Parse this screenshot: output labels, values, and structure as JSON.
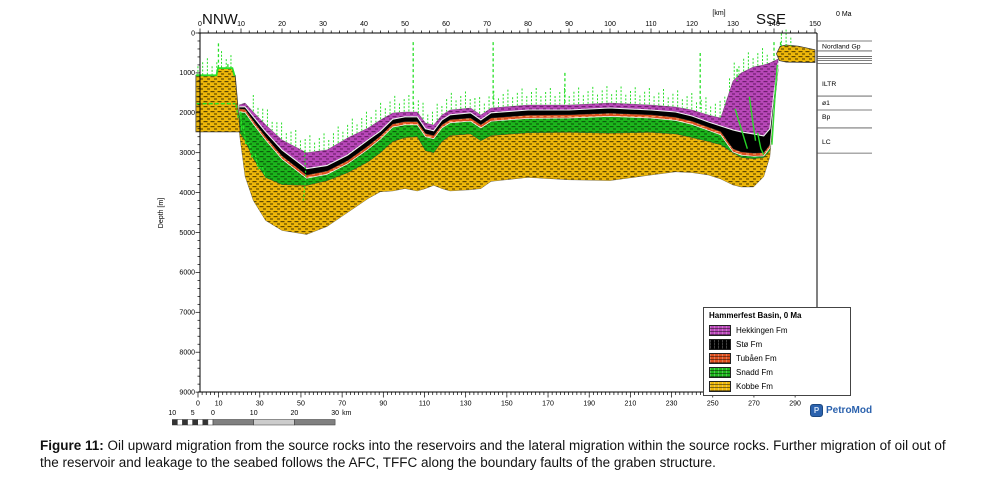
{
  "header": {
    "orientation_left": "NNW",
    "orientation_right": "SSE",
    "distance_unit_label": "[km]",
    "age_label": "0 Ma"
  },
  "depth_axis": {
    "label": "Depth [m]",
    "ticks": [
      0,
      1000,
      2000,
      3000,
      4000,
      5000,
      6000,
      7000,
      8000,
      9000
    ]
  },
  "top_axis": {
    "ticks": [
      0,
      10,
      20,
      30,
      40,
      50,
      60,
      70,
      80,
      90,
      100,
      110,
      120,
      130,
      140,
      150
    ]
  },
  "bottom_axis": {
    "ticks": [
      0,
      10,
      30,
      50,
      70,
      90,
      110,
      130,
      150,
      170,
      190,
      210,
      230,
      250,
      270,
      290
    ]
  },
  "panel": {
    "labels": [
      {
        "text": "Nordland Gp",
        "depth_m": 330
      },
      {
        "text": "ILTR",
        "depth_m": 1260
      },
      {
        "text": "ø1",
        "depth_m": 1740
      },
      {
        "text": "Bp",
        "depth_m": 2090
      },
      {
        "text": "LC",
        "depth_m": 2720
      }
    ],
    "line_depths_m": [
      200,
      450,
      590,
      640,
      690,
      765,
      1580,
      1930,
      2380,
      3010
    ]
  },
  "legend": {
    "title": "Hammerfest Basin, 0 Ma",
    "items": [
      {
        "label": "Hekkingen Fm",
        "color": "#B847B8",
        "pattern_dark": "#6E1F6E"
      },
      {
        "label": "Stø Fm",
        "color": "#000000",
        "pattern_dark": "#000000"
      },
      {
        "label": "Tubåen Fm",
        "color": "#DD4F1E",
        "pattern_dark": "#F5975F"
      },
      {
        "label": "Snadd Fm",
        "color": "#1CB51C",
        "pattern_dark": "#0B5E0B"
      },
      {
        "label": "Kobbe Fm",
        "color": "#EDB70A",
        "pattern_dark": "#5E4700"
      }
    ]
  },
  "scalebar": {
    "values": [
      10,
      5,
      0,
      10,
      20,
      30
    ],
    "unit": "km"
  },
  "logo": {
    "text": "PetroMod",
    "icon_letter": "P",
    "color": "#2B62AE"
  },
  "caption": {
    "label": "Figure 11:",
    "text": "Oil upward migration from the source rocks into the reservoirs and the lateral migration within the source rocks. Further migration of oil out of the reservoir and leakage to the seabed follows the AFC, TFFC along the boundary faults of the graben structure."
  },
  "chart_data": {
    "type": "cross-section",
    "title": "Hammerfest Basin, 0 Ma",
    "x_axis": {
      "label": "[km]",
      "range": [
        0,
        150
      ]
    },
    "secondary_x_axis": {
      "range": [
        0,
        296
      ]
    },
    "depth_axis": {
      "label": "Depth [m]",
      "range": [
        0,
        9000
      ]
    },
    "formations": {
      "stations_km": [
        9.6,
        11,
        13,
        16,
        20,
        26,
        31,
        36,
        41,
        44,
        47,
        50,
        53,
        55,
        57,
        59,
        61,
        66,
        68.5,
        71,
        80,
        90,
        100,
        110,
        116,
        120,
        124,
        127,
        130,
        132,
        135,
        137.5,
        139,
        140,
        141
      ],
      "boundaries_m": {
        "top_hekkingen": [
          1800,
          1754,
          1980,
          2300,
          2680,
          3000,
          2930,
          2630,
          2380,
          2180,
          2005,
          1980,
          1980,
          2256,
          2306,
          2055,
          1930,
          1880,
          2055,
          1880,
          1805,
          1805,
          1754,
          1805,
          1855,
          1930,
          2055,
          2130,
          1200,
          1000,
          850,
          800,
          750,
          700,
          650
        ],
        "hekkingen_sto": [
          1850,
          1850,
          2100,
          2480,
          2930,
          3400,
          3320,
          3060,
          2680,
          2460,
          2160,
          2100,
          2100,
          2400,
          2450,
          2180,
          2050,
          2000,
          2180,
          2000,
          1930,
          1930,
          1880,
          1930,
          1980,
          2080,
          2230,
          2330,
          2430,
          2480,
          2530,
          2580,
          2400,
          1500,
          750
        ],
        "sto_tubaen": [
          1900,
          1910,
          2200,
          2600,
          3080,
          3560,
          3460,
          3200,
          2830,
          2580,
          2280,
          2220,
          2220,
          2520,
          2570,
          2300,
          2170,
          2130,
          2300,
          2130,
          2060,
          2050,
          2010,
          2050,
          2110,
          2210,
          2360,
          2470,
          2900,
          2980,
          3010,
          3000,
          2800,
          1700,
          800
        ],
        "tubaen_snadd": [
          1980,
          1990,
          2280,
          2680,
          3160,
          3640,
          3540,
          3280,
          2910,
          2660,
          2360,
          2300,
          2300,
          2600,
          2650,
          2380,
          2250,
          2210,
          2380,
          2210,
          2140,
          2130,
          2090,
          2130,
          2190,
          2290,
          2440,
          2550,
          2980,
          3060,
          3090,
          3080,
          2880,
          1780,
          850
        ],
        "snadd_kobbe": [
          2480,
          2700,
          3150,
          3620,
          3800,
          3820,
          3700,
          3500,
          3230,
          3000,
          2720,
          2620,
          2600,
          2950,
          3000,
          2720,
          2570,
          2530,
          2700,
          2570,
          2500,
          2490,
          2510,
          2490,
          2530,
          2620,
          2720,
          2800,
          3000,
          3120,
          3150,
          3120,
          2950,
          1850,
          900
        ],
        "base_kobbe": [
          2520,
          3600,
          4200,
          4700,
          4950,
          5050,
          4850,
          4500,
          4150,
          3980,
          3960,
          3900,
          3960,
          3900,
          3820,
          3900,
          3960,
          3930,
          3900,
          3720,
          3620,
          3680,
          3700,
          3560,
          3480,
          3500,
          3560,
          3660,
          3810,
          3860,
          3860,
          3600,
          3100,
          1950,
          950
        ]
      },
      "left_block_kobbe": [
        [
          -1,
          1060
        ],
        [
          4,
          1060
        ],
        [
          4.4,
          880
        ],
        [
          7.9,
          880
        ],
        [
          8.4,
          1060
        ],
        [
          8.6,
          1060
        ],
        [
          9.8,
          2480
        ],
        [
          -1,
          2480
        ]
      ],
      "right_tongue_kobbe": [
        [
          140.6,
          520
        ],
        [
          141.5,
          330
        ],
        [
          143,
          300
        ],
        [
          146,
          330
        ],
        [
          150,
          420
        ],
        [
          150,
          740
        ],
        [
          143,
          730
        ],
        [
          141.3,
          690
        ]
      ]
    },
    "migration": {
      "color": "#28DF28",
      "leak_lines": [
        {
          "km": 4.5,
          "top_m": 260,
          "bottom_m": 900
        },
        {
          "km": 6.8,
          "top_m": 780,
          "bottom_m": 880
        },
        {
          "km": 52,
          "top_m": 230,
          "bottom_m": 1900
        },
        {
          "km": 71.5,
          "top_m": 230,
          "bottom_m": 1850
        },
        {
          "km": 89,
          "top_m": 1000,
          "bottom_m": 1800
        },
        {
          "km": 122,
          "top_m": 500,
          "bottom_m": 1900
        },
        {
          "km": 131,
          "top_m": 900,
          "bottom_m": 1200
        },
        {
          "km": 140,
          "top_m": 230,
          "bottom_m": 680
        },
        {
          "km": 141.6,
          "top_m": 230,
          "bottom_m": 330
        }
      ],
      "fringe_ranges_km": [
        [
          -0.5,
          8.4
        ],
        [
          13,
          139
        ],
        [
          141.8,
          145
        ]
      ],
      "block_hline": {
        "depth_m": 1770,
        "from_km": -0.8,
        "to_km": 8.6
      },
      "slope_polyline": [
        [
          8.8,
          1800
        ],
        [
          9.3,
          2100
        ],
        [
          9.9,
          2000
        ],
        [
          10.2,
          2400
        ],
        [
          10.6,
          2350
        ],
        [
          11.2,
          2800
        ],
        [
          12,
          2750
        ],
        [
          12.6,
          3100
        ],
        [
          13.5,
          3050
        ],
        [
          14.2,
          3400
        ],
        [
          15.2,
          3350
        ],
        [
          16,
          3620
        ]
      ],
      "axis_streak": [
        [
          25.5,
          2950
        ],
        [
          25.8,
          3600
        ],
        [
          25.2,
          4200
        ]
      ],
      "graben_veins": [
        [
          [
            130.5,
            1900
          ],
          [
            132,
            2400
          ],
          [
            133.5,
            2900
          ]
        ],
        [
          [
            134,
            1600
          ],
          [
            134.8,
            2200
          ],
          [
            135.5,
            2700
          ]
        ],
        [
          [
            136,
            2500
          ],
          [
            136.8,
            2900
          ],
          [
            137.5,
            3050
          ]
        ],
        [
          [
            139.5,
            2800
          ],
          [
            140.3,
            1500
          ],
          [
            140.8,
            800
          ]
        ]
      ]
    }
  }
}
